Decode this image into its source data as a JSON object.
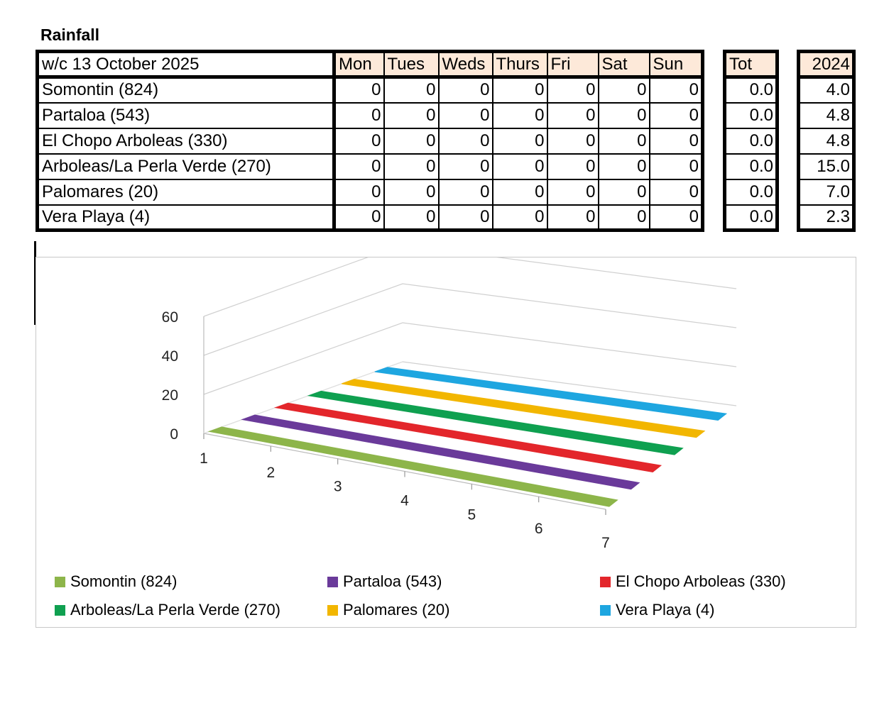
{
  "title": "Rainfall",
  "table": {
    "week_label": "w/c 13 October  2025",
    "day_headers": [
      "Mon",
      "Tues",
      "Weds",
      "Thurs",
      "Fri",
      "Sat",
      "Sun"
    ],
    "total_header": "Tot",
    "prev_year_header": "2024",
    "rows": [
      {
        "station": "Somontin (824)",
        "days": [
          "0",
          "0",
          "0",
          "0",
          "0",
          "0",
          "0"
        ],
        "total": "0.0",
        "prev": "4.0"
      },
      {
        "station": "Partaloa (543)",
        "days": [
          "0",
          "0",
          "0",
          "0",
          "0",
          "0",
          "0"
        ],
        "total": "0.0",
        "prev": "4.8"
      },
      {
        "station": "El Chopo Arboleas (330)",
        "days": [
          "0",
          "0",
          "0",
          "0",
          "0",
          "0",
          "0"
        ],
        "total": "0.0",
        "prev": "4.8"
      },
      {
        "station": "Arboleas/La Perla Verde (270)",
        "days": [
          "0",
          "0",
          "0",
          "0",
          "0",
          "0",
          "0"
        ],
        "total": "0.0",
        "prev": "15.0"
      },
      {
        "station": "Palomares (20)",
        "days": [
          "0",
          "0",
          "0",
          "0",
          "0",
          "0",
          "0"
        ],
        "total": "0.0",
        "prev": "7.0"
      },
      {
        "station": "Vera Playa (4)",
        "days": [
          "0",
          "0",
          "0",
          "0",
          "0",
          "0",
          "0"
        ],
        "total": "0.0",
        "prev": "2.3"
      }
    ]
  },
  "chart_data": {
    "type": "area",
    "title": "",
    "xlabel": "",
    "ylabel": "",
    "x": [
      1,
      2,
      3,
      4,
      5,
      6,
      7
    ],
    "x_tick_labels": [
      "1",
      "2",
      "3",
      "4",
      "5",
      "6",
      "7"
    ],
    "y_tick_labels": [
      "0",
      "20",
      "40",
      "60"
    ],
    "ylim": [
      0,
      60
    ],
    "grid": true,
    "legend_position": "bottom",
    "style": "3d-area",
    "series": [
      {
        "name": "Somontin (824)",
        "values": [
          0,
          0,
          0,
          0,
          0,
          0,
          0
        ],
        "color": "#8db54a"
      },
      {
        "name": "Partaloa (543)",
        "values": [
          0,
          0,
          0,
          0,
          0,
          0,
          0
        ],
        "color": "#6a3a9a"
      },
      {
        "name": "El Chopo Arboleas (330)",
        "values": [
          0,
          0,
          0,
          0,
          0,
          0,
          0
        ],
        "color": "#e3262b"
      },
      {
        "name": "Arboleas/La Perla Verde (270)",
        "values": [
          0,
          0,
          0,
          0,
          0,
          0,
          0
        ],
        "color": "#0fa050"
      },
      {
        "name": "Palomares (20)",
        "values": [
          0,
          0,
          0,
          0,
          0,
          0,
          0
        ],
        "color": "#f2b600"
      },
      {
        "name": "Vera Playa (4)",
        "values": [
          0,
          0,
          0,
          0,
          0,
          0,
          0
        ],
        "color": "#1ea6e0"
      }
    ]
  }
}
